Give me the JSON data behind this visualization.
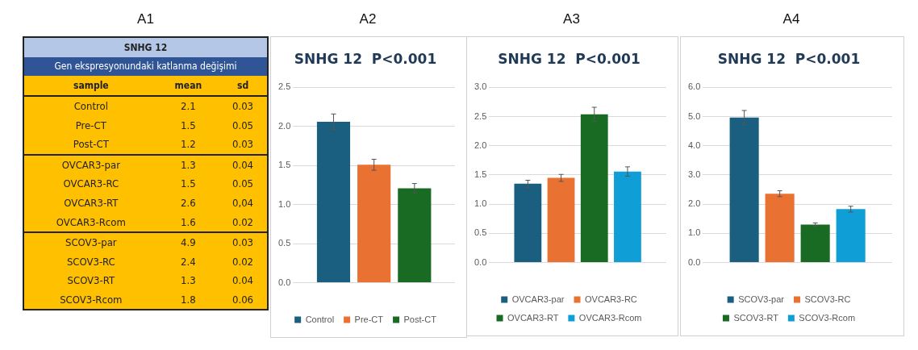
{
  "chart_data": [
    {
      "type": "other",
      "annotations": [
        "A1"
      ],
      "title": "SNHG 12",
      "subtitle": "Gen ekspresyonundaki katlanma değişimi",
      "xlabel": "sample",
      "categories": [
        "Control",
        "Pre-CT",
        "Post-CT",
        "OVCAR3-par",
        "OVCAR3-RC",
        "OVCAR3-RT",
        "OVCAR3-Rcom",
        "SCOV3-par",
        "SCOV3-RC",
        "SCOV3-RT",
        "SCOV3-Rcom"
      ],
      "series": [
        {
          "name": "mean",
          "values": [
            2.1,
            1.5,
            1.2,
            1.3,
            1.5,
            2.6,
            1.6,
            4.9,
            2.4,
            1.3,
            1.8
          ]
        },
        {
          "name": "sd",
          "values": [
            0.03,
            0.05,
            0.03,
            0.04,
            0.05,
            0.04,
            0.02,
            0.03,
            0.02,
            0.04,
            0.06
          ],
          "value_labels": [
            "0.03",
            "0.05",
            "0.03",
            "0.04",
            "0.05",
            "0,04",
            "0.02",
            "0.03",
            "0.02",
            "0.04",
            "0.06"
          ]
        }
      ],
      "data_labels": true
    },
    {
      "type": "bar",
      "annotations": [
        "A2"
      ],
      "title": "SNHG 12  P<0.001",
      "categories": [
        null
      ],
      "ylim": [
        0,
        2.5
      ],
      "yticks": [
        {
          "value": 0,
          "label": "0.0"
        },
        0.5,
        {
          "value": 1,
          "label": "1.0"
        },
        1.5,
        {
          "value": 2,
          "label": "2.0"
        },
        2.5
      ],
      "grid": "y",
      "legend": "bottom",
      "series": [
        {
          "name": "Control",
          "color": "#1a5f80",
          "values": [
            2.06
          ],
          "errors": [
            0.1
          ]
        },
        {
          "name": "Pre-CT",
          "color": "#e97132",
          "values": [
            1.51
          ],
          "errors": [
            0.07
          ]
        },
        {
          "name": "Post-CT",
          "color": "#196b24",
          "values": [
            1.21
          ],
          "errors": [
            0.06
          ]
        }
      ]
    },
    {
      "type": "bar",
      "annotations": [
        "A3"
      ],
      "title": "SNHG 12  P<0.001",
      "categories": [
        null
      ],
      "ylim": [
        0,
        3
      ],
      "yticks": [
        {
          "value": 0,
          "label": "0.0"
        },
        0.5,
        {
          "value": 1,
          "label": "1.0"
        },
        1.5,
        {
          "value": 2,
          "label": "2.0"
        },
        2.5,
        {
          "value": 3,
          "label": "3.0"
        }
      ],
      "grid": "y",
      "legend": "bottom",
      "series": [
        {
          "name": "OVCAR3-par",
          "color": "#1a5f80",
          "values": [
            1.35
          ],
          "errors": [
            0.06
          ]
        },
        {
          "name": "OVCAR3-RC",
          "color": "#e97132",
          "values": [
            1.45
          ],
          "errors": [
            0.06
          ]
        },
        {
          "name": "OVCAR3-RT",
          "color": "#196b24",
          "values": [
            2.54
          ],
          "errors": [
            0.12
          ]
        },
        {
          "name": "OVCAR3-Rcom",
          "color": "#0f9ed5",
          "values": [
            1.56
          ],
          "errors": [
            0.08
          ]
        }
      ]
    },
    {
      "type": "bar",
      "annotations": [
        "A4"
      ],
      "title": "SNHG 12  P<0.001",
      "categories": [
        null
      ],
      "ylim": [
        0,
        6
      ],
      "yticks": [
        {
          "value": 0,
          "label": "0.0"
        },
        {
          "value": 1,
          "label": "1.0"
        },
        {
          "value": 2,
          "label": "2.0"
        },
        {
          "value": 3,
          "label": "3.0"
        },
        {
          "value": 4,
          "label": "4.0"
        },
        {
          "value": 5,
          "label": "5.0"
        },
        {
          "value": 6,
          "label": "6.0"
        }
      ],
      "grid": "y",
      "legend": "bottom",
      "series": [
        {
          "name": "SCOV3-par",
          "color": "#1a5f80",
          "values": [
            4.97
          ],
          "errors": [
            0.24
          ]
        },
        {
          "name": "SCOV3-RC",
          "color": "#e97132",
          "values": [
            2.36
          ],
          "errors": [
            0.1
          ]
        },
        {
          "name": "SCOV3-RT",
          "color": "#196b24",
          "values": [
            1.3
          ],
          "errors": [
            0.06
          ]
        },
        {
          "name": "SCOV3-Rcom",
          "color": "#0f9ed5",
          "values": [
            1.83
          ],
          "errors": [
            0.1
          ]
        }
      ]
    }
  ]
}
